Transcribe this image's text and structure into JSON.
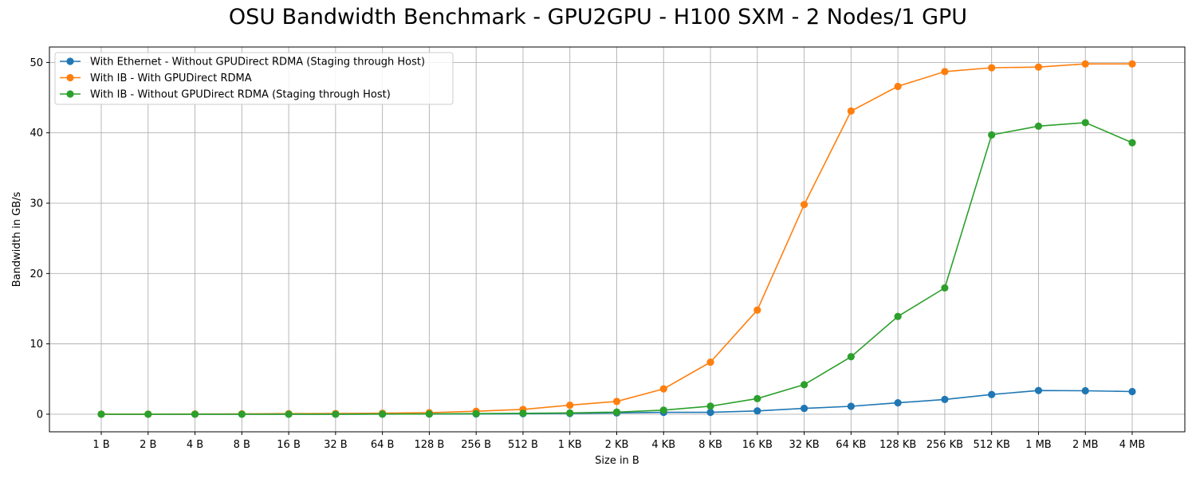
{
  "chart_data": {
    "type": "line",
    "title": "OSU Bandwidth Benchmark - GPU2GPU - H100 SXM - 2 Nodes/1 GPU",
    "xlabel": "Size in B",
    "ylabel": "Bandwidth in GB/s",
    "categories": [
      "1 B",
      "2 B",
      "4 B",
      "8 B",
      "16 B",
      "32 B",
      "64 B",
      "128 B",
      "256 B",
      "512 B",
      "1 KB",
      "2 KB",
      "4 KB",
      "8 KB",
      "16 KB",
      "32 KB",
      "64 KB",
      "128 KB",
      "256 KB",
      "512 KB",
      "1 MB",
      "2 MB",
      "4 MB"
    ],
    "ylim": [
      -2.5,
      52.2
    ],
    "yticks": [
      0,
      10,
      20,
      30,
      40,
      50
    ],
    "grid": true,
    "legend_position": "upper-left",
    "series": [
      {
        "name": "With Ethernet - Without GPUDirect RDMA (Staging through Host)",
        "color": "#1f77b4",
        "values": [
          0.0,
          0.0,
          0.0,
          0.0,
          0.0,
          0.0,
          0.01,
          0.02,
          0.04,
          0.07,
          0.1,
          0.18,
          0.26,
          0.26,
          0.47,
          0.83,
          1.12,
          1.62,
          2.1,
          2.8,
          3.37,
          3.33,
          3.22
        ]
      },
      {
        "name": "With IB - With GPUDirect RDMA",
        "color": "#ff7f0e",
        "values": [
          0.01,
          0.01,
          0.03,
          0.05,
          0.08,
          0.1,
          0.14,
          0.22,
          0.42,
          0.68,
          1.28,
          1.82,
          3.6,
          7.4,
          14.8,
          29.8,
          43.1,
          46.6,
          48.7,
          49.25,
          49.35,
          49.8,
          49.8
        ]
      },
      {
        "name": "With IB - Without GPUDirect RDMA (Staging through Host)",
        "color": "#2ca02c",
        "values": [
          0.0,
          0.0,
          0.0,
          0.0,
          0.0,
          0.0,
          0.02,
          0.04,
          0.08,
          0.13,
          0.18,
          0.3,
          0.58,
          1.14,
          2.22,
          4.2,
          8.17,
          13.9,
          17.95,
          39.7,
          40.95,
          41.45,
          38.6
        ]
      }
    ]
  }
}
